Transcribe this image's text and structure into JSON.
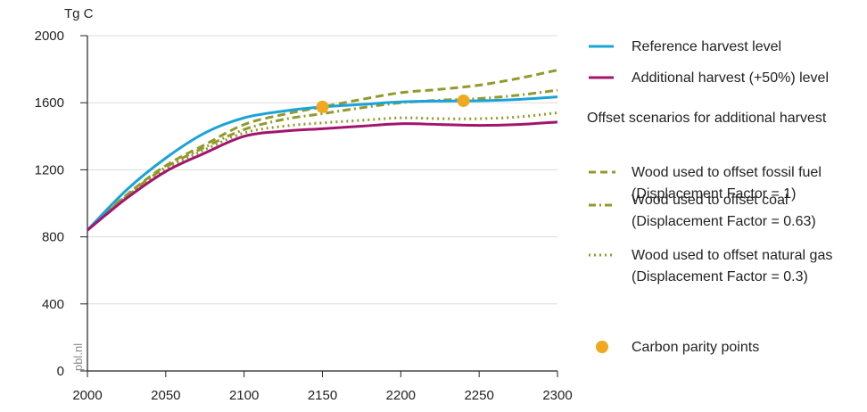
{
  "chart_data": {
    "type": "line",
    "ylabel": "Tg C",
    "source_label": "pbl.nl",
    "xlim": [
      2000,
      2300
    ],
    "ylim": [
      0,
      2000
    ],
    "x_ticks": [
      "2000",
      "2050",
      "2100",
      "2150",
      "2200",
      "2250",
      "2300"
    ],
    "y_ticks": [
      "0",
      "400",
      "800",
      "1200",
      "1600",
      "2000"
    ],
    "grid": "horizontal",
    "legend_position": "right",
    "legend_heading": "Offset scenarios for additional harvest",
    "series": [
      {
        "name": "Reference harvest level",
        "color": "#1aa3d8",
        "style": "solid",
        "x": [
          2000,
          2025,
          2050,
          2075,
          2100,
          2125,
          2150,
          2175,
          2200,
          2225,
          2250,
          2275,
          2300
        ],
        "y": [
          840,
          1080,
          1270,
          1420,
          1510,
          1550,
          1575,
          1590,
          1605,
          1610,
          1612,
          1620,
          1635
        ]
      },
      {
        "name": "Additional harvest (+50%) level",
        "color": "#a3146e",
        "style": "solid",
        "x": [
          2000,
          2025,
          2050,
          2075,
          2100,
          2125,
          2150,
          2175,
          2200,
          2225,
          2250,
          2275,
          2300
        ],
        "y": [
          840,
          1030,
          1190,
          1300,
          1400,
          1430,
          1445,
          1460,
          1475,
          1470,
          1465,
          1470,
          1485
        ]
      },
      {
        "name": "Wood used to offset fossil fuel",
        "subname": "(Displacement Factor = 1)",
        "color": "#939a2c",
        "style": "dashed",
        "x": [
          2000,
          2025,
          2050,
          2075,
          2100,
          2125,
          2150,
          2175,
          2200,
          2225,
          2250,
          2275,
          2300
        ],
        "y": [
          840,
          1050,
          1225,
          1350,
          1470,
          1530,
          1575,
          1620,
          1660,
          1680,
          1705,
          1745,
          1795
        ]
      },
      {
        "name": "Wood used to offset coal",
        "subname": "(Displacement Factor = 0.63)",
        "color": "#939a2c",
        "style": "dashdot",
        "x": [
          2000,
          2025,
          2050,
          2075,
          2100,
          2125,
          2150,
          2175,
          2200,
          2225,
          2250,
          2275,
          2300
        ],
        "y": [
          840,
          1045,
          1215,
          1335,
          1440,
          1500,
          1535,
          1570,
          1600,
          1615,
          1625,
          1645,
          1675
        ]
      },
      {
        "name": "Wood used to offset natural gas",
        "subname": "(Displacement Factor = 0.3)",
        "color": "#939a2c",
        "style": "dotted",
        "x": [
          2000,
          2025,
          2050,
          2075,
          2100,
          2125,
          2150,
          2175,
          2200,
          2225,
          2250,
          2275,
          2300
        ],
        "y": [
          840,
          1040,
          1205,
          1320,
          1420,
          1460,
          1480,
          1495,
          1510,
          1505,
          1505,
          1515,
          1540
        ]
      }
    ],
    "markers": {
      "name": "Carbon parity points",
      "color": "#f0a91e",
      "points": [
        {
          "x": 2150,
          "y": 1575
        },
        {
          "x": 2240,
          "y": 1612
        }
      ]
    }
  }
}
